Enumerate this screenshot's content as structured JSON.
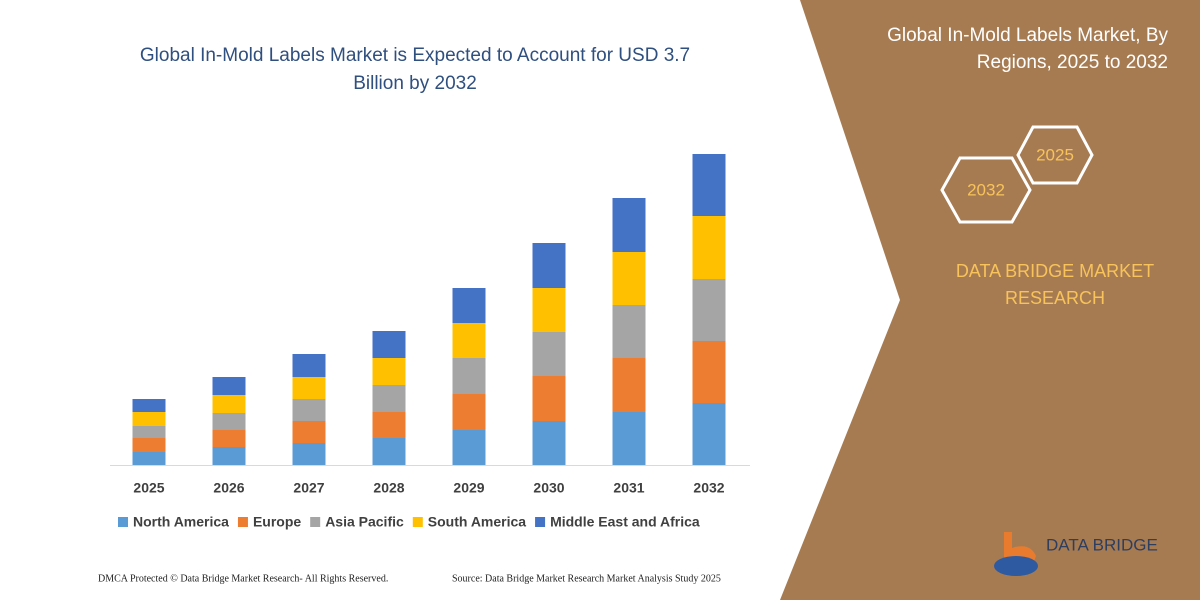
{
  "chart_data": {
    "type": "stacked-bar",
    "title": "Global In-Mold Labels Market is Expected to Account for USD 3.7 Billion by 2032",
    "categories": [
      "2025",
      "2026",
      "2027",
      "2028",
      "2029",
      "2030",
      "2031",
      "2032"
    ],
    "series": [
      {
        "name": "North America",
        "color": "#5b9bd5",
        "values": [
          13,
          18,
          22,
          27,
          35,
          44,
          53,
          62
        ]
      },
      {
        "name": "Europe",
        "color": "#ed7d31",
        "values": [
          14,
          17,
          22,
          26,
          36,
          45,
          54,
          62
        ]
      },
      {
        "name": "Asia Pacific",
        "color": "#a5a5a5",
        "values": [
          12,
          17,
          22,
          27,
          36,
          44,
          53,
          62
        ]
      },
      {
        "name": "South America",
        "color": "#ffc000",
        "values": [
          14,
          18,
          22,
          27,
          35,
          44,
          53,
          63
        ]
      },
      {
        "name": "Middle East and Africa",
        "color": "#4472c4",
        "values": [
          13,
          18,
          23,
          27,
          35,
          45,
          54,
          62
        ]
      }
    ],
    "ylim": [
      0,
      320
    ]
  },
  "panel": {
    "title": "Global In-Mold Labels Market, By Regions, 2025 to 2032",
    "badges": [
      "2025",
      "2032"
    ],
    "brand": "DATA BRIDGE MARKET RESEARCH"
  },
  "logo": "DATA BRIDGE",
  "footer": {
    "copyright": "DMCA Protected © Data Bridge Market Research- All Rights Reserved.",
    "source": "Source: Data Bridge Market Research  Market Analysis Study 2025"
  }
}
